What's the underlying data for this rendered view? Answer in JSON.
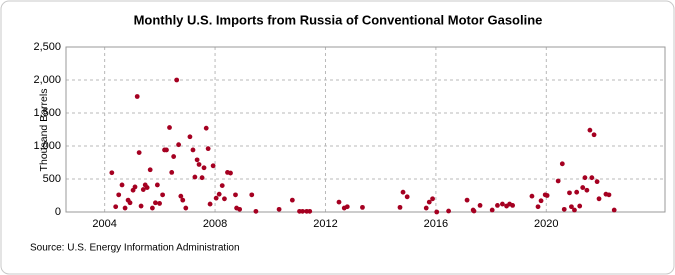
{
  "chart_data": {
    "type": "scatter",
    "title": "Monthly U.S. Imports from Russia of Conventional Motor Gasoline",
    "y_label": "Thousand Barrels",
    "source": "Source: U.S. Energy Information Administration",
    "color": "#a50021",
    "grid": true,
    "xlim": [
      2002.6,
      2024.3
    ],
    "xticks": [
      2004,
      2008,
      2012,
      2016,
      2020
    ],
    "ylim": [
      0,
      2500
    ],
    "yticks": [
      0,
      500,
      {
        "value": 1000,
        "label": "1,000"
      },
      {
        "value": 1500,
        "label": "1,500"
      },
      {
        "value": 2000,
        "label": "2,000"
      },
      {
        "value": 2500,
        "label": "2,500"
      }
    ],
    "x": [
      2004.26,
      2004.4,
      2004.51,
      2004.63,
      2004.74,
      2004.85,
      2004.92,
      2005.03,
      2005.1,
      2005.18,
      2005.25,
      2005.32,
      2005.4,
      2005.47,
      2005.54,
      2005.65,
      2005.73,
      2005.84,
      2005.91,
      2005.99,
      2006.1,
      2006.17,
      2006.24,
      2006.35,
      2006.43,
      2006.5,
      2006.61,
      2006.68,
      2006.76,
      2006.83,
      2006.94,
      2007.09,
      2007.2,
      2007.27,
      2007.35,
      2007.42,
      2007.53,
      2007.6,
      2007.68,
      2007.75,
      2007.82,
      2007.93,
      2008.04,
      2008.15,
      2008.26,
      2008.34,
      2008.45,
      2008.56,
      2008.74,
      2008.78,
      2008.89,
      2009.33,
      2009.48,
      2010.32,
      2010.8,
      2011.06,
      2011.17,
      2011.32,
      2011.43,
      2012.49,
      2012.68,
      2012.79,
      2013.34,
      2014.7,
      2014.81,
      2014.96,
      2015.65,
      2015.76,
      2015.88,
      2016.03,
      2016.46,
      2017.13,
      2017.35,
      2017.38,
      2017.6,
      2018.04,
      2018.23,
      2018.41,
      2018.56,
      2018.67,
      2018.78,
      2019.48,
      2019.7,
      2019.81,
      2019.96,
      2020.03,
      2020.43,
      2020.58,
      2020.65,
      2020.84,
      2020.91,
      2021.02,
      2021.1,
      2021.21,
      2021.32,
      2021.4,
      2021.47,
      2021.58,
      2021.65,
      2021.73,
      2021.84,
      2021.91,
      2022.16,
      2022.27,
      2022.46
    ],
    "values": [
      595,
      80,
      260,
      410,
      60,
      180,
      140,
      330,
      380,
      1750,
      900,
      90,
      340,
      410,
      370,
      640,
      60,
      140,
      410,
      130,
      260,
      940,
      940,
      1280,
      600,
      840,
      2000,
      1020,
      240,
      180,
      60,
      1140,
      940,
      530,
      790,
      720,
      520,
      670,
      1270,
      960,
      120,
      700,
      210,
      270,
      400,
      200,
      600,
      590,
      260,
      60,
      40,
      260,
      10,
      40,
      180,
      10,
      10,
      10,
      10,
      150,
      60,
      80,
      70,
      70,
      300,
      230,
      60,
      150,
      200,
      0,
      15,
      180,
      30,
      15,
      100,
      30,
      100,
      120,
      90,
      120,
      100,
      240,
      80,
      170,
      260,
      250,
      470,
      730,
      40,
      290,
      80,
      30,
      300,
      90,
      370,
      520,
      330,
      1240,
      520,
      1170,
      460,
      200,
      270,
      260,
      30
    ]
  }
}
